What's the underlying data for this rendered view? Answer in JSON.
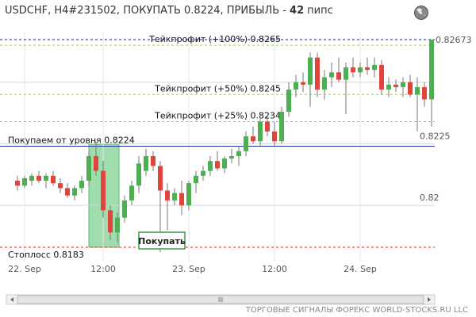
{
  "chart_data": {
    "type": "candlestick",
    "title": "USDCHF, H4#231502, ПОКУПАТЬ 0.8224, ПРИБЫЛЬ -",
    "profit_pips": 42,
    "profit_unit": "пипс",
    "footer": "ТОРГОВЫЕ СИГНАЛЫ ФОРЕКС WORLD-STOCKS.RU LLC",
    "button_label": "Покупать",
    "up_color": "#4caf50",
    "down_color": "#e0443a",
    "ylim": [
      0.81772,
      0.82705
    ],
    "yticks": [
      0.82,
      0.8225
    ],
    "gridlines": [
      0.825
    ],
    "current_price": {
      "value": 0.82673,
      "label": "0.82673",
      "color": "#1a1aa0"
    },
    "levels": [
      {
        "label": "Тейкпрофит (+100%) 0.8265",
        "value": 0.8265,
        "color": "#9acd32",
        "style": "dashed",
        "label_side": "tp"
      },
      {
        "label": "Тейкпрофит (+50%) 0.8245",
        "value": 0.8245,
        "color": "#9acd32",
        "style": "dashed",
        "label_side": "tp"
      },
      {
        "label": "Тейкпрофит (+25%) 0.8234",
        "value": 0.8234,
        "color": "#9acd32",
        "style": "dashed",
        "label_side": "tp"
      },
      {
        "label": "Покупаем от уровня 0.8224",
        "value": 0.8224,
        "color": "#2233aa",
        "style": "solid",
        "label_side": "left-above"
      },
      {
        "label": "Стоплосс 0.8183",
        "value": 0.8183,
        "color": "#d22",
        "style": "dashed",
        "label_side": "left-below"
      }
    ],
    "categories": [
      null,
      "22. Sep",
      null,
      null,
      null,
      null,
      null,
      null,
      null,
      null,
      null,
      null,
      "12:00",
      null,
      null,
      null,
      null,
      null,
      null,
      null,
      null,
      null,
      null,
      null,
      "23. Sep",
      null,
      null,
      null,
      null,
      null,
      null,
      null,
      null,
      null,
      null,
      null,
      "12:00",
      null,
      null,
      null,
      null,
      null,
      null,
      null,
      null,
      null,
      null,
      null,
      "24. Sep",
      null,
      null,
      null,
      null,
      null,
      null,
      null,
      null,
      null,
      null
    ],
    "ohlc": [
      [
        0.821,
        0.8212,
        0.8206,
        0.8208
      ],
      [
        0.8208,
        0.8212,
        0.8207,
        0.8211
      ],
      [
        0.821,
        0.8213,
        0.8208,
        0.8212
      ],
      [
        0.8212,
        0.8214,
        0.8209,
        0.821
      ],
      [
        0.821,
        0.8213,
        0.8207,
        0.8212
      ],
      [
        0.8212,
        0.8214,
        0.8208,
        0.8209
      ],
      [
        0.8209,
        0.8211,
        0.8205,
        0.8207
      ],
      [
        0.8207,
        0.8209,
        0.8203,
        0.8204
      ],
      [
        0.8204,
        0.8208,
        0.8202,
        0.8207
      ],
      [
        0.8207,
        0.8212,
        0.8205,
        0.821
      ],
      [
        0.821,
        0.8222,
        0.8208,
        0.822
      ],
      [
        0.822,
        0.8226,
        0.8212,
        0.8214
      ],
      [
        0.8214,
        0.8218,
        0.8195,
        0.8198
      ],
      [
        0.8198,
        0.82,
        0.8186,
        0.8189
      ],
      [
        0.8189,
        0.8197,
        0.8185,
        0.8195
      ],
      [
        0.8195,
        0.8204,
        0.8193,
        0.8202
      ],
      [
        0.8202,
        0.821,
        0.82,
        0.8208
      ],
      [
        0.8208,
        0.822,
        0.8205,
        0.8217
      ],
      [
        0.8214,
        0.8223,
        0.8212,
        0.822
      ],
      [
        0.822,
        0.8222,
        0.8214,
        0.8216
      ],
      [
        0.8216,
        0.8218,
        0.8181,
        0.8206
      ],
      [
        0.8206,
        0.8209,
        0.819,
        0.8202
      ],
      [
        0.8202,
        0.8207,
        0.82,
        0.8205
      ],
      [
        0.8205,
        0.821,
        0.8196,
        0.82
      ],
      [
        0.82,
        0.821,
        0.8198,
        0.8209
      ],
      [
        0.8209,
        0.8214,
        0.8205,
        0.8212
      ],
      [
        0.8212,
        0.8216,
        0.821,
        0.8214
      ],
      [
        0.8214,
        0.822,
        0.8212,
        0.8218
      ],
      [
        0.8218,
        0.8222,
        0.8214,
        0.8215
      ],
      [
        0.8215,
        0.822,
        0.8213,
        0.8219
      ],
      [
        0.8219,
        0.8223,
        0.8217,
        0.822
      ],
      [
        0.822,
        0.8224,
        0.8216,
        0.8222
      ],
      [
        0.8222,
        0.823,
        0.822,
        0.8228
      ],
      [
        0.8228,
        0.8232,
        0.8225,
        0.8226
      ],
      [
        0.8226,
        0.8236,
        0.8224,
        0.8234
      ],
      [
        0.8234,
        0.8236,
        0.8228,
        0.823
      ],
      [
        0.823,
        0.8234,
        0.8224,
        0.8226
      ],
      [
        0.8226,
        0.824,
        0.8225,
        0.8238
      ],
      [
        0.8238,
        0.825,
        0.8236,
        0.8247
      ],
      [
        0.8247,
        0.8253,
        0.8244,
        0.825
      ],
      [
        0.825,
        0.8254,
        0.8246,
        0.8249
      ],
      [
        0.8249,
        0.8262,
        0.824,
        0.826
      ],
      [
        0.826,
        0.8262,
        0.8244,
        0.8247
      ],
      [
        0.8247,
        0.8255,
        0.8243,
        0.8252
      ],
      [
        0.8252,
        0.8258,
        0.8248,
        0.8254
      ],
      [
        0.8254,
        0.826,
        0.825,
        0.8251
      ],
      [
        0.8251,
        0.8258,
        0.8237,
        0.8256
      ],
      [
        0.8256,
        0.826,
        0.8252,
        0.8254
      ],
      [
        0.8254,
        0.8258,
        0.8252,
        0.8256
      ],
      [
        0.8256,
        0.826,
        0.8253,
        0.8255
      ],
      [
        0.8255,
        0.826,
        0.8252,
        0.8257
      ],
      [
        0.8257,
        0.8259,
        0.8245,
        0.8247
      ],
      [
        0.8247,
        0.8252,
        0.8244,
        0.8249
      ],
      [
        0.8249,
        0.8251,
        0.8246,
        0.8248
      ],
      [
        0.8248,
        0.8252,
        0.8244,
        0.825
      ],
      [
        0.825,
        0.8253,
        0.8244,
        0.8245
      ],
      [
        0.8245,
        0.8252,
        0.823,
        0.8248
      ],
      [
        0.8248,
        0.825,
        0.824,
        0.8243
      ],
      [
        0.8243,
        0.82673,
        0.8232,
        0.82673
      ]
    ]
  }
}
